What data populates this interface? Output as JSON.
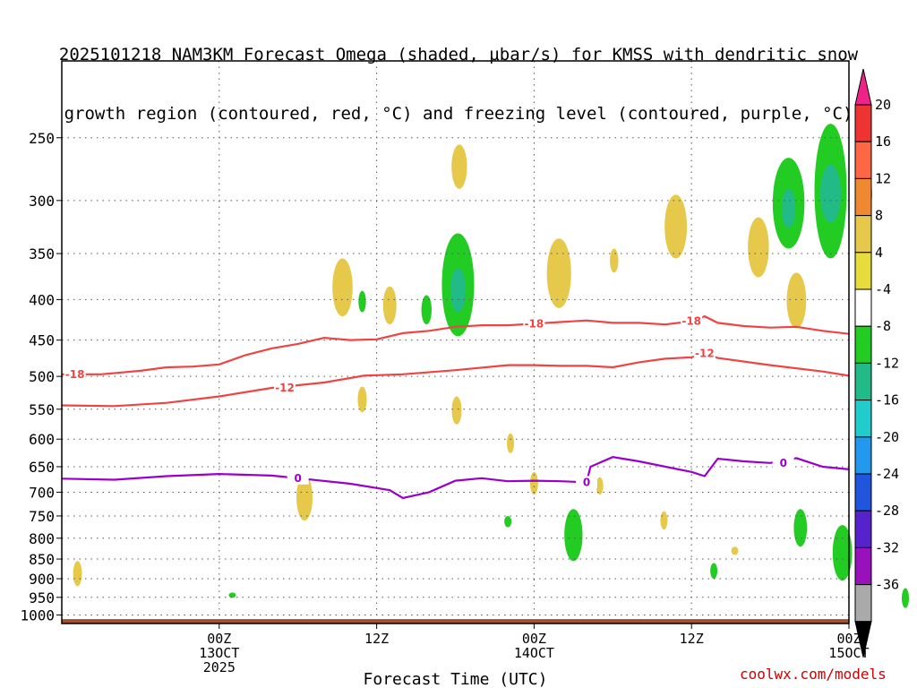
{
  "title": {
    "line1": "2025101218 NAM3KM Forecast Omega (shaded, µbar/s) for KMSS with dendritic snow",
    "line2": "growth region (contoured, red, °C) and freezing level (contoured, purple, °C)"
  },
  "credit": "coolwx.com/models",
  "colors": {
    "dgz": "#ef4444",
    "freezing": "#9900cc",
    "terrain": "#a0522d",
    "grid": "#555555"
  },
  "chart_data": {
    "type": "heatmap",
    "xlabel": "Forecast Time (UTC)",
    "xlim_hours_from_2025101218": [
      -6,
      54
    ],
    "ylim_hPa": [
      1025,
      200
    ],
    "y_scale": "log-pressure",
    "grid": true,
    "x_ticks": [
      {
        "h": 6,
        "lines": [
          "00Z",
          "13OCT",
          "2025"
        ]
      },
      {
        "h": 18,
        "lines": [
          "12Z"
        ]
      },
      {
        "h": 30,
        "lines": [
          "00Z",
          "14OCT"
        ]
      },
      {
        "h": 42,
        "lines": [
          "12Z"
        ]
      },
      {
        "h": 54,
        "lines": [
          "00Z",
          "15OCT"
        ]
      }
    ],
    "y_ticks": [
      "250",
      "300",
      "350",
      "400",
      "450",
      "500",
      "550",
      "600",
      "650",
      "700",
      "750",
      "800",
      "850",
      "900",
      "950",
      "1000"
    ],
    "colorbar": {
      "labels": [
        "20",
        "16",
        "12",
        "8",
        "4",
        "-4",
        "-8",
        "-12",
        "-16",
        "-20",
        "-24",
        "-28",
        "-32",
        "-36"
      ],
      "bins": [
        {
          "lo": 16,
          "hi": 20,
          "color": "#ee3333"
        },
        {
          "lo": 12,
          "hi": 16,
          "color": "#ff6644"
        },
        {
          "lo": 8,
          "hi": 12,
          "color": "#ee8833"
        },
        {
          "lo": 4,
          "hi": 8,
          "color": "#e6c84a"
        },
        {
          "lo": 0,
          "hi": 4,
          "color": "#e6dc3c"
        },
        {
          "lo": -4,
          "hi": 0,
          "color": "#ffffff"
        },
        {
          "lo": -8,
          "hi": -4,
          "color": "#22cc22"
        },
        {
          "lo": -12,
          "hi": -8,
          "color": "#22bb88"
        },
        {
          "lo": -16,
          "hi": -12,
          "color": "#22cccc"
        },
        {
          "lo": -20,
          "hi": -16,
          "color": "#2299ee"
        },
        {
          "lo": -24,
          "hi": -20,
          "color": "#2255dd"
        },
        {
          "lo": -28,
          "hi": -24,
          "color": "#5522cc"
        },
        {
          "lo": -32,
          "hi": -28,
          "color": "#9911bb"
        },
        {
          "lo": -36,
          "hi": -32,
          "color": "#aaaaaa"
        }
      ],
      "overflow_high_color": "#ee2288",
      "overflow_low_color": "#000000"
    },
    "contours": [
      {
        "name": "-18",
        "color": "#ef4444",
        "label_hours": [
          -5,
          30,
          42
        ],
        "points": [
          [
            -6,
            497
          ],
          [
            -3,
            497
          ],
          [
            0,
            492
          ],
          [
            2,
            487
          ],
          [
            4,
            486
          ],
          [
            6,
            483
          ],
          [
            8,
            470
          ],
          [
            10,
            461
          ],
          [
            12,
            455
          ],
          [
            14,
            447
          ],
          [
            16,
            450
          ],
          [
            18,
            449
          ],
          [
            20,
            441
          ],
          [
            22,
            438
          ],
          [
            24,
            433
          ],
          [
            26,
            431
          ],
          [
            28,
            431
          ],
          [
            30,
            429
          ],
          [
            32,
            427
          ],
          [
            34,
            425
          ],
          [
            36,
            428
          ],
          [
            38,
            428
          ],
          [
            40,
            430
          ],
          [
            42,
            426
          ],
          [
            43,
            420
          ],
          [
            44,
            428
          ],
          [
            46,
            432
          ],
          [
            48,
            434
          ],
          [
            50,
            433
          ],
          [
            52,
            438
          ],
          [
            54,
            442
          ],
          [
            55,
            448
          ],
          [
            57,
            450
          ],
          [
            60,
            455
          ]
        ]
      },
      {
        "name": "-12",
        "color": "#ef4444",
        "label_hours": [
          11,
          43
        ],
        "points": [
          [
            -6,
            544
          ],
          [
            -2,
            545
          ],
          [
            2,
            540
          ],
          [
            6,
            530
          ],
          [
            10,
            517
          ],
          [
            14,
            509
          ],
          [
            17,
            499
          ],
          [
            20,
            497
          ],
          [
            24,
            491
          ],
          [
            28,
            484
          ],
          [
            30,
            484
          ],
          [
            32,
            485
          ],
          [
            34,
            485
          ],
          [
            36,
            487
          ],
          [
            38,
            480
          ],
          [
            40,
            475
          ],
          [
            42,
            473
          ],
          [
            43,
            468
          ],
          [
            44,
            474
          ],
          [
            48,
            484
          ],
          [
            52,
            493
          ],
          [
            56,
            505
          ],
          [
            60,
            517
          ]
        ]
      },
      {
        "name": "0",
        "color": "#9900cc",
        "label_hours": [
          12,
          34,
          49
        ],
        "points": [
          [
            -6,
            673
          ],
          [
            -2,
            675
          ],
          [
            2,
            668
          ],
          [
            6,
            664
          ],
          [
            10,
            667
          ],
          [
            12,
            672
          ],
          [
            16,
            683
          ],
          [
            19,
            696
          ],
          [
            20,
            712
          ],
          [
            22,
            700
          ],
          [
            24,
            677
          ],
          [
            26,
            672
          ],
          [
            28,
            678
          ],
          [
            30,
            677
          ],
          [
            32,
            678
          ],
          [
            34,
            680
          ],
          [
            34.3,
            650
          ],
          [
            36,
            632
          ],
          [
            38,
            640
          ],
          [
            42,
            660
          ],
          [
            43,
            668
          ],
          [
            44,
            635
          ],
          [
            46,
            640
          ],
          [
            48,
            643
          ],
          [
            50,
            634
          ],
          [
            52,
            650
          ],
          [
            54,
            655
          ],
          [
            56,
            675
          ],
          [
            58,
            683
          ],
          [
            60,
            695
          ]
        ]
      }
    ],
    "omega_cells": [
      {
        "hour": -4.8,
        "pmin": 855,
        "pmax": 920,
        "value": 6
      },
      {
        "hour": 7.0,
        "pmin": 938,
        "pmax": 950,
        "value": -6
      },
      {
        "hour": 12.5,
        "pmin": 665,
        "pmax": 760,
        "value": 6
      },
      {
        "hour": 15.4,
        "pmin": 355,
        "pmax": 420,
        "value": 6
      },
      {
        "hour": 16.9,
        "pmin": 390,
        "pmax": 415,
        "value": -6
      },
      {
        "hour": 16.9,
        "pmin": 515,
        "pmax": 555,
        "value": 6
      },
      {
        "hour": 19.0,
        "pmin": 385,
        "pmax": 430,
        "value": 6
      },
      {
        "hour": 21.8,
        "pmin": 395,
        "pmax": 430,
        "value": -6
      },
      {
        "hour": 24.3,
        "pmin": 255,
        "pmax": 290,
        "value": 6
      },
      {
        "hour": 24.2,
        "pmin": 330,
        "pmax": 445,
        "value": -6
      },
      {
        "hour": 24.2,
        "pmin": 365,
        "pmax": 415,
        "value": -10
      },
      {
        "hour": 24.1,
        "pmin": 530,
        "pmax": 575,
        "value": 6
      },
      {
        "hour": 28.2,
        "pmin": 590,
        "pmax": 625,
        "value": 6
      },
      {
        "hour": 28.0,
        "pmin": 750,
        "pmax": 775,
        "value": -6
      },
      {
        "hour": 30.0,
        "pmin": 660,
        "pmax": 705,
        "value": 6
      },
      {
        "hour": 31.9,
        "pmin": 335,
        "pmax": 410,
        "value": 6
      },
      {
        "hour": 33.0,
        "pmin": 735,
        "pmax": 855,
        "value": -6
      },
      {
        "hour": 35.0,
        "pmin": 670,
        "pmax": 705,
        "value": 6
      },
      {
        "hour": 36.1,
        "pmin": 345,
        "pmax": 370,
        "value": 6
      },
      {
        "hour": 39.9,
        "pmin": 740,
        "pmax": 780,
        "value": 6
      },
      {
        "hour": 40.8,
        "pmin": 295,
        "pmax": 355,
        "value": 6
      },
      {
        "hour": 43.7,
        "pmin": 860,
        "pmax": 900,
        "value": -6
      },
      {
        "hour": 45.3,
        "pmin": 820,
        "pmax": 840,
        "value": 6
      },
      {
        "hour": 47.1,
        "pmin": 315,
        "pmax": 375,
        "value": 6
      },
      {
        "hour": 49.4,
        "pmin": 265,
        "pmax": 345,
        "value": -6
      },
      {
        "hour": 49.4,
        "pmin": 290,
        "pmax": 325,
        "value": -10
      },
      {
        "hour": 50.0,
        "pmin": 370,
        "pmax": 435,
        "value": 6
      },
      {
        "hour": 50.3,
        "pmin": 735,
        "pmax": 820,
        "value": -6
      },
      {
        "hour": 52.6,
        "pmin": 240,
        "pmax": 355,
        "value": -6
      },
      {
        "hour": 52.6,
        "pmin": 270,
        "pmax": 320,
        "value": -10
      },
      {
        "hour": 53.5,
        "pmin": 770,
        "pmax": 905,
        "value": -6
      },
      {
        "hour": 55.3,
        "pmin": 280,
        "pmax": 310,
        "value": -6
      },
      {
        "hour": 58.3,
        "pmin": 925,
        "pmax": 980,
        "value": -6
      }
    ],
    "terrain": {
      "psfc_hPa": 1012
    }
  }
}
